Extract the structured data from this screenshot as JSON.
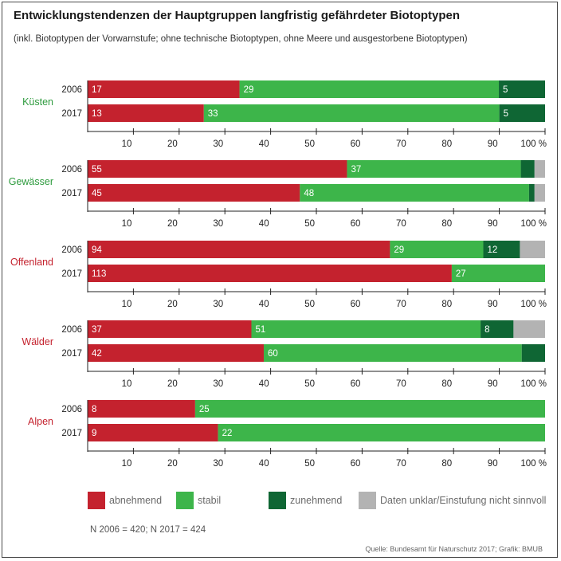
{
  "title": "Entwicklungstendenzen der Hauptgruppen langfristig gefährdeter Biotoptypen",
  "subtitle": "(inkl. Biotoptypen der Vorwarnstufe; ohne technische Biotoptypen, ohne Meere und ausgestorbene Biotoptypen)",
  "colors": {
    "abnehmend": "#c4222e",
    "stabil": "#3db54a",
    "zunehmend": "#0f6634",
    "unklar": "#b3b3b3",
    "group_green": "#2e9b3e",
    "group_red": "#c4222e"
  },
  "chart_data": {
    "type": "bar",
    "orientation": "horizontal",
    "stacked": true,
    "xlim": [
      0,
      100
    ],
    "x_ticks": [
      "10",
      "20",
      "30",
      "40",
      "50",
      "60",
      "70",
      "80",
      "90",
      "100 %"
    ],
    "series_names": [
      "abnehmend",
      "stabil",
      "zunehmend",
      "Daten unklar/Einstufung nicht sinnvoll"
    ],
    "groups": [
      {
        "name": "Küsten",
        "label_color": "group_green",
        "rows": [
          {
            "year": "2006",
            "percents": [
              33.2,
              56.7,
              10.1,
              0
            ],
            "labels": [
              "17",
              "29",
              "5",
              ""
            ]
          },
          {
            "year": "2017",
            "percents": [
              25.4,
              64.6,
              10.0,
              0
            ],
            "labels": [
              "13",
              "33",
              "5",
              ""
            ]
          }
        ]
      },
      {
        "name": "Gewässer",
        "label_color": "group_green",
        "rows": [
          {
            "year": "2006",
            "percents": [
              56.7,
              38.0,
              3.0,
              2.3
            ],
            "labels": [
              "55",
              "37",
              "",
              ""
            ]
          },
          {
            "year": "2017",
            "percents": [
              46.4,
              50.1,
              1.2,
              2.3
            ],
            "labels": [
              "45",
              "48",
              "",
              ""
            ]
          }
        ]
      },
      {
        "name": "Offenland",
        "label_color": "group_red",
        "rows": [
          {
            "year": "2006",
            "percents": [
              66.1,
              20.4,
              8.0,
              5.5
            ],
            "labels": [
              "94",
              "29",
              "12",
              ""
            ]
          },
          {
            "year": "2017",
            "percents": [
              79.6,
              20.4,
              0,
              0
            ],
            "labels": [
              "113",
              "27",
              "",
              ""
            ]
          }
        ]
      },
      {
        "name": "Wälder",
        "label_color": "group_red",
        "rows": [
          {
            "year": "2006",
            "percents": [
              35.8,
              50.1,
              7.2,
              6.9
            ],
            "labels": [
              "37",
              "51",
              "8",
              ""
            ]
          },
          {
            "year": "2017",
            "percents": [
              38.5,
              56.4,
              5.1,
              0
            ],
            "labels": [
              "42",
              "60",
              "",
              ""
            ]
          }
        ]
      },
      {
        "name": "Alpen",
        "label_color": "group_red",
        "rows": [
          {
            "year": "2006",
            "percents": [
              23.5,
              76.5,
              0,
              0
            ],
            "labels": [
              "8",
              "25",
              "",
              ""
            ]
          },
          {
            "year": "2017",
            "percents": [
              28.5,
              71.5,
              0,
              0
            ],
            "labels": [
              "9",
              "22",
              "",
              ""
            ]
          }
        ]
      }
    ]
  },
  "legend": {
    "abnehmend": "abnehmend",
    "stabil": "stabil",
    "zunehmend": "zunehmend",
    "unklar": "Daten unklar/Einstufung nicht sinnvoll"
  },
  "footnote": "N 2006 = 420; N 2017 = 424",
  "source": "Quelle: Bundesamt für Naturschutz 2017; Grafik: BMUB"
}
